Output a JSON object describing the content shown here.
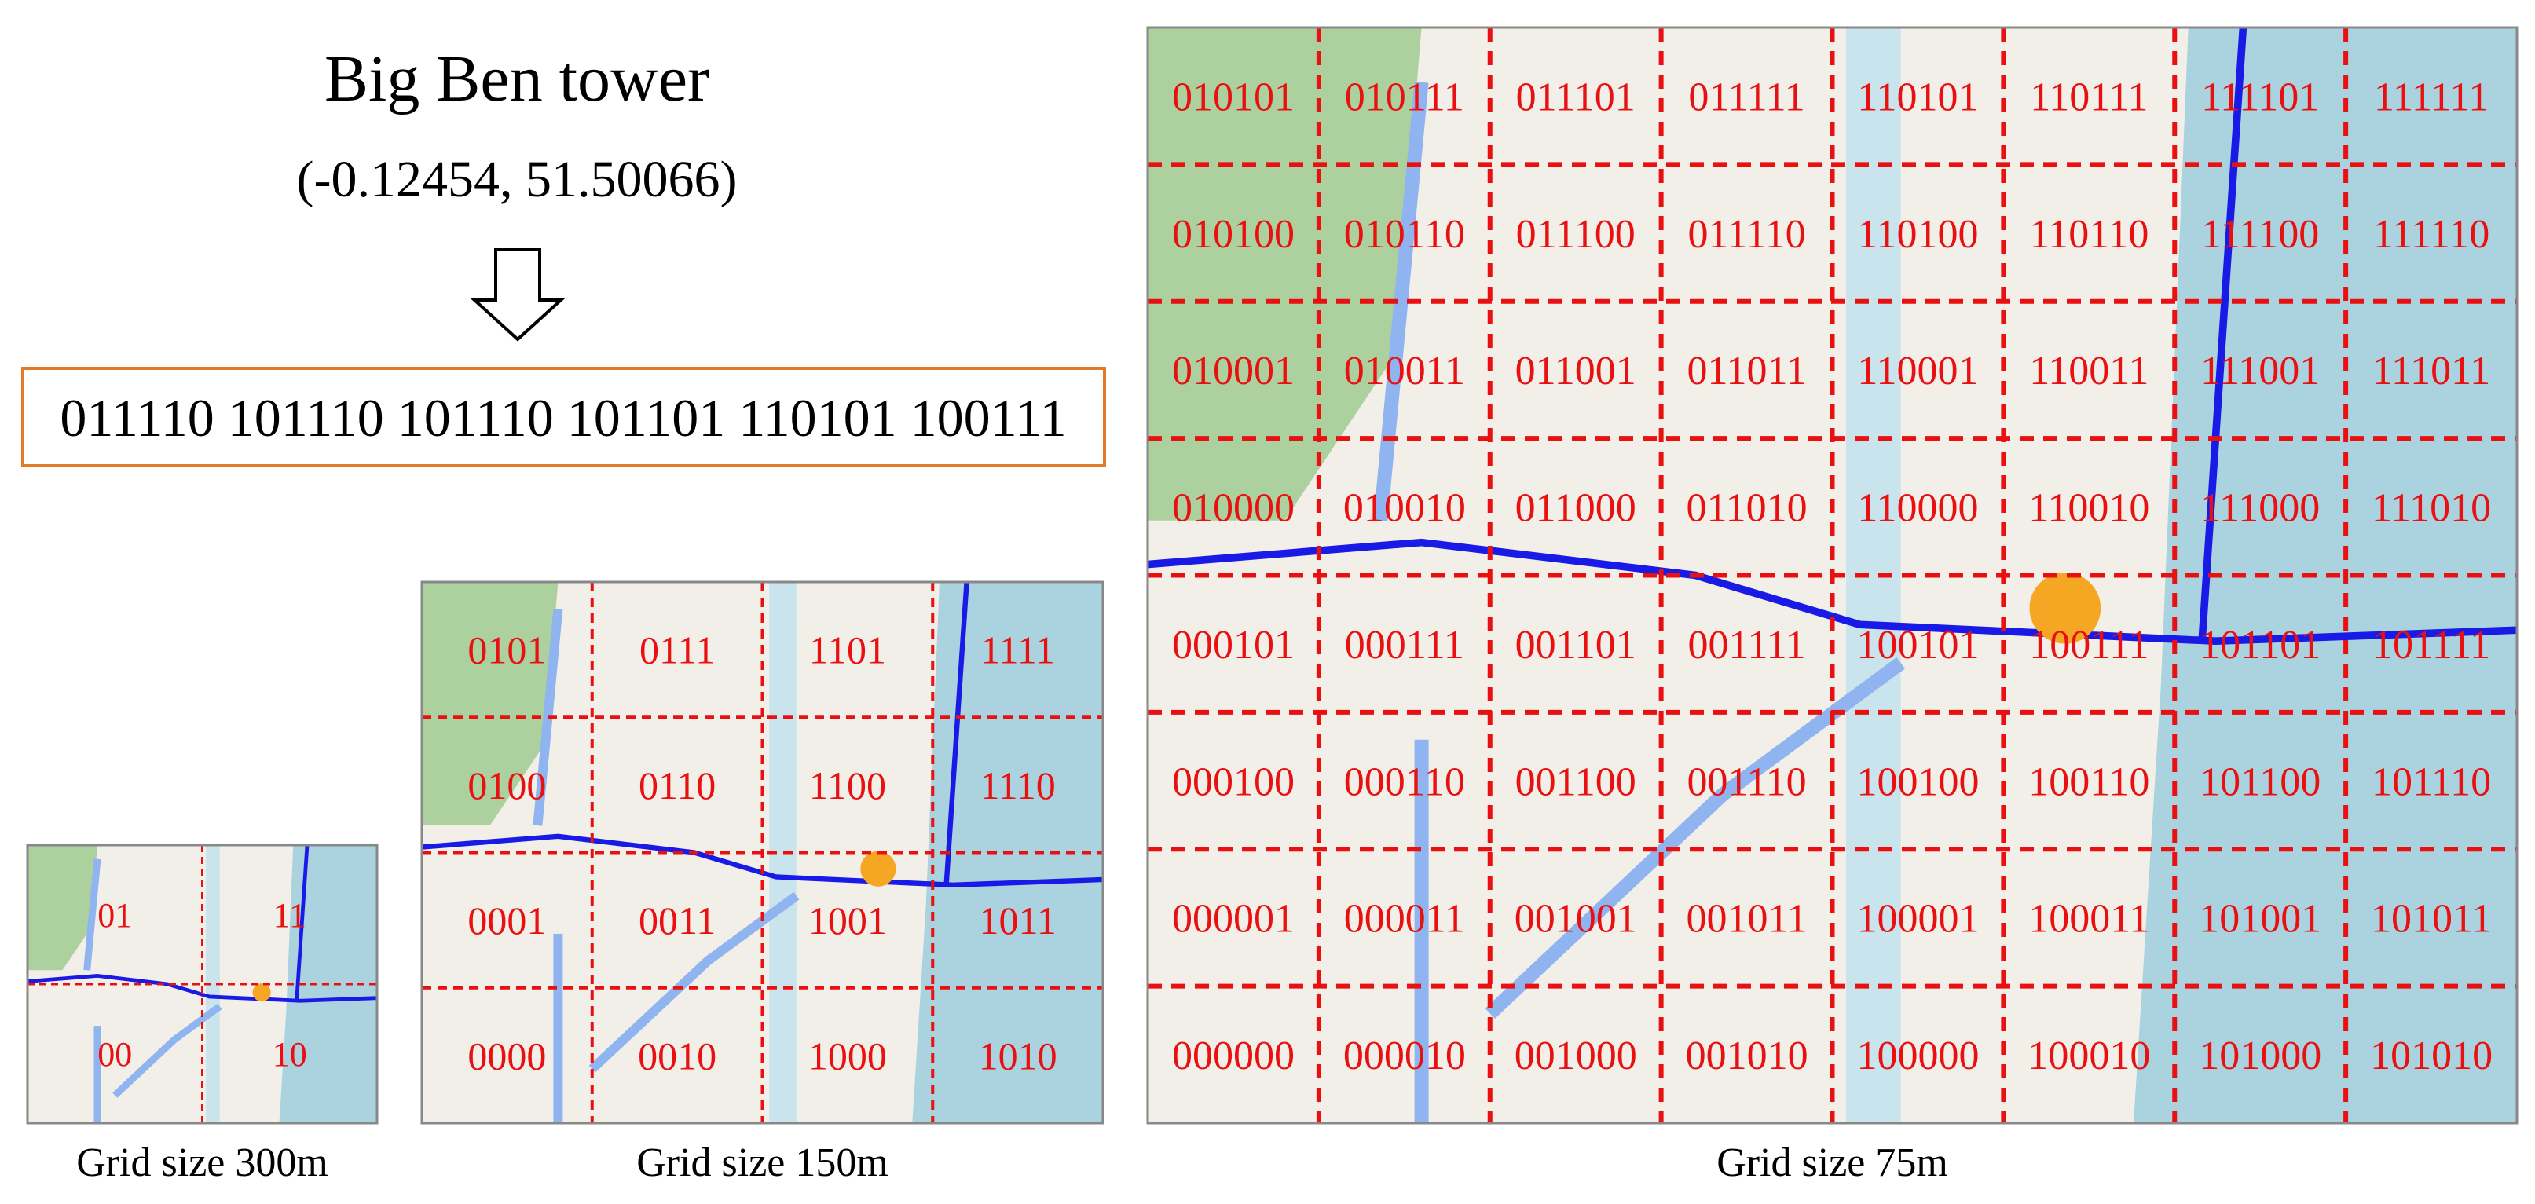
{
  "header": {
    "title": "Big Ben tower",
    "coordinates": "(-0.12454, 51.50066)",
    "code": "011110 101110 101110 101101 110101 100111"
  },
  "grids": [
    {
      "caption": "Grid size 300m",
      "cells": [
        [
          "01",
          "11"
        ],
        [
          "00",
          "10"
        ]
      ]
    },
    {
      "caption": "Grid size 150m",
      "cells": [
        [
          "0101",
          "0111",
          "1101",
          "1111"
        ],
        [
          "0100",
          "0110",
          "1100",
          "1110"
        ],
        [
          "0001",
          "0011",
          "1001",
          "1011"
        ],
        [
          "0000",
          "0010",
          "1000",
          "1010"
        ]
      ]
    },
    {
      "caption": "Grid size 75m",
      "cells": [
        [
          "010101",
          "010111",
          "011101",
          "011111",
          "110101",
          "110111",
          "111101",
          "111111"
        ],
        [
          "010100",
          "010110",
          "011100",
          "011110",
          "110100",
          "110110",
          "111100",
          "111110"
        ],
        [
          "010001",
          "010011",
          "011001",
          "011011",
          "110001",
          "110011",
          "111001",
          "111011"
        ],
        [
          "010000",
          "010010",
          "011000",
          "011010",
          "110000",
          "110010",
          "111000",
          "111010"
        ],
        [
          "000101",
          "000111",
          "001101",
          "001111",
          "100101",
          "100111",
          "101101",
          "101111"
        ],
        [
          "000100",
          "000110",
          "001100",
          "001110",
          "100100",
          "100110",
          "101100",
          "101110"
        ],
        [
          "000001",
          "000011",
          "001001",
          "001011",
          "100001",
          "100011",
          "101001",
          "101011"
        ],
        [
          "000000",
          "000010",
          "001000",
          "001010",
          "100000",
          "100010",
          "101000",
          "101010"
        ]
      ]
    }
  ]
}
